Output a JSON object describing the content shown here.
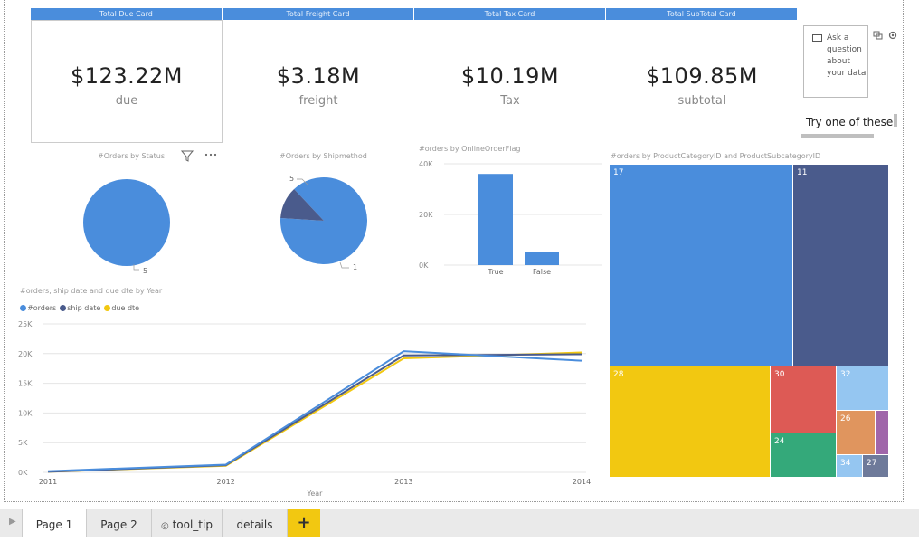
{
  "cards": [
    {
      "header": "Total Due Card",
      "value": "$123.22M",
      "label": "due"
    },
    {
      "header": "Total Freight Card",
      "value": "$3.18M",
      "label": "freight"
    },
    {
      "header": "Total Tax Card",
      "value": "$10.19M",
      "label": "Tax"
    },
    {
      "header": "Total SubTotal Card",
      "value": "$109.85M",
      "label": "subtotal"
    }
  ],
  "qa": {
    "text": "Ask a question about your data",
    "try": "Try one of these"
  },
  "visuals": {
    "status_title": "#Orders by Status",
    "shipmethod_title": "#Orders by Shipmethod",
    "onlineflag_title": "#orders by OnlineOrderFlag",
    "treemap_title": "#orders by ProductCategoryID and ProductSubcategoryID",
    "line_title": "#orders, ship date and due dte by Year"
  },
  "legend": [
    {
      "name": "#orders",
      "color": "#4a8ddc"
    },
    {
      "name": "ship date",
      "color": "#4a5b8c"
    },
    {
      "name": "due dte",
      "color": "#f2c811"
    }
  ],
  "colors": {
    "blue": "#4a8ddc",
    "navy": "#4a5b8c",
    "yellow": "#f2c811",
    "red": "#dd5a55",
    "lightblue": "#95c6f1",
    "green": "#34a97a",
    "orange": "#e0955e",
    "purple": "#a066aa",
    "slate": "#6e7a9a"
  },
  "chart_data": [
    {
      "type": "pie",
      "title": "#Orders by Status",
      "slices": [
        {
          "label": "5",
          "value": 100
        }
      ]
    },
    {
      "type": "pie",
      "title": "#Orders by Shipmethod",
      "slices": [
        {
          "label": "1",
          "value": 88
        },
        {
          "label": "5",
          "value": 12
        }
      ]
    },
    {
      "type": "bar",
      "title": "#orders by OnlineOrderFlag",
      "categories": [
        "True",
        "False"
      ],
      "values": [
        36,
        5
      ],
      "yticks": [
        "0K",
        "20K",
        "40K"
      ],
      "ylim": [
        0,
        40
      ]
    },
    {
      "type": "line",
      "title": "#orders, ship date and due dte by Year",
      "xlabel": "Year",
      "x": [
        "2011",
        "2012",
        "2013",
        "2014"
      ],
      "yticks": [
        "0K",
        "5K",
        "10K",
        "15K",
        "20K",
        "25K"
      ],
      "ylim": [
        0,
        25
      ],
      "series": [
        {
          "name": "#orders",
          "values": [
            0.2,
            1.3,
            20.4,
            18.8
          ]
        },
        {
          "name": "ship date",
          "values": [
            0.1,
            1.2,
            19.7,
            19.9
          ]
        },
        {
          "name": "due dte",
          "values": [
            0.1,
            1.1,
            19.2,
            20.2
          ]
        }
      ]
    },
    {
      "type": "treemap",
      "title": "#orders by ProductCategoryID and ProductSubcategoryID",
      "cells": [
        {
          "label": "17"
        },
        {
          "label": "11"
        },
        {
          "label": "28"
        },
        {
          "label": "30"
        },
        {
          "label": "32"
        },
        {
          "label": "26"
        },
        {
          "label": "24"
        },
        {
          "label": "34"
        },
        {
          "label": "27"
        }
      ]
    }
  ],
  "tabs": [
    {
      "label": "Page 1"
    },
    {
      "label": "Page 2"
    },
    {
      "label": "tool_tip"
    },
    {
      "label": "details"
    }
  ],
  "tab_add": "+"
}
